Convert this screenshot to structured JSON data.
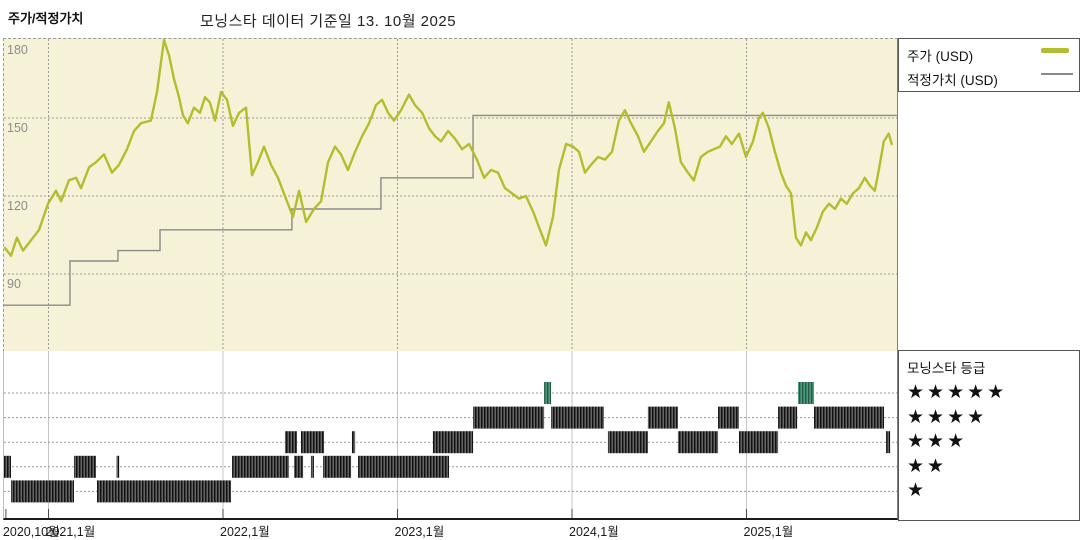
{
  "header": {
    "section_label": "주가/적정가치",
    "chart_title": "모닝스타 데이터 기준일 13. 10월 2025"
  },
  "legend": {
    "price_label": "주가 (USD)",
    "fair_value_label": "적정가치 (USD)"
  },
  "rating_legend": {
    "title": "모닝스타 등급",
    "rows": [
      "★★★★★",
      "★★★★",
      "★★★",
      "★★",
      "★"
    ]
  },
  "colors": {
    "plot_bg": "#f6f2d8",
    "price_line": "#b3bd2d",
    "fair_value_line": "#8a8a8a",
    "grid": "#9a9a9a",
    "axis_text": "#8c8c8c",
    "rating_band_dark": "#3d3d3d",
    "rating_band_green": "#3c8468"
  },
  "chart_data": {
    "type": "line",
    "title": "모닝스타 데이터 기준일 13. 10월 2025",
    "ylabel": "USD",
    "y_ticks": [
      180,
      150,
      120,
      90,
      60
    ],
    "ylim": [
      60,
      180
    ],
    "x_ticks": [
      {
        "label": "2020,10월",
        "year": 2020.756
      },
      {
        "label": "2021,1월",
        "year": 2021.0
      },
      {
        "label": "2022,1월",
        "year": 2022.0
      },
      {
        "label": "2023,1월",
        "year": 2023.0
      },
      {
        "label": "2024,1월",
        "year": 2024.0
      },
      {
        "label": "2025,1월",
        "year": 2025.0
      }
    ],
    "xlim_decimal_years": [
      2020.745,
      2025.862
    ],
    "series": [
      {
        "name": "주가 (USD)",
        "style": "line",
        "points": [
          [
            2020.751,
            100
          ],
          [
            2020.785,
            97
          ],
          [
            2020.819,
            104
          ],
          [
            2020.854,
            99
          ],
          [
            2020.9,
            103
          ],
          [
            2020.946,
            107
          ],
          [
            2020.997,
            117
          ],
          [
            2021.043,
            122
          ],
          [
            2021.072,
            118
          ],
          [
            2021.117,
            126
          ],
          [
            2021.158,
            127
          ],
          [
            2021.186,
            123
          ],
          [
            2021.232,
            131
          ],
          [
            2021.272,
            133
          ],
          [
            2021.318,
            136
          ],
          [
            2021.364,
            129
          ],
          [
            2021.404,
            132
          ],
          [
            2021.45,
            138
          ],
          [
            2021.49,
            145
          ],
          [
            2021.53,
            148
          ],
          [
            2021.587,
            149
          ],
          [
            2021.622,
            160
          ],
          [
            2021.662,
            180
          ],
          [
            2021.691,
            174
          ],
          [
            2021.719,
            165
          ],
          [
            2021.748,
            158
          ],
          [
            2021.771,
            151
          ],
          [
            2021.799,
            148
          ],
          [
            2021.834,
            154
          ],
          [
            2021.868,
            152
          ],
          [
            2021.897,
            158
          ],
          [
            2021.925,
            156
          ],
          [
            2021.954,
            149
          ],
          [
            2021.989,
            160
          ],
          [
            2022.023,
            157
          ],
          [
            2022.057,
            147
          ],
          [
            2022.092,
            152
          ],
          [
            2022.132,
            154
          ],
          [
            2022.166,
            128
          ],
          [
            2022.2,
            133
          ],
          [
            2022.235,
            139
          ],
          [
            2022.275,
            132
          ],
          [
            2022.315,
            127
          ],
          [
            2022.355,
            120
          ],
          [
            2022.401,
            112
          ],
          [
            2022.436,
            122
          ],
          [
            2022.476,
            110
          ],
          [
            2022.521,
            115
          ],
          [
            2022.562,
            118
          ],
          [
            2022.602,
            133
          ],
          [
            2022.642,
            139
          ],
          [
            2022.676,
            136
          ],
          [
            2022.716,
            130
          ],
          [
            2022.757,
            137
          ],
          [
            2022.797,
            143
          ],
          [
            2022.837,
            148
          ],
          [
            2022.877,
            155
          ],
          [
            2022.911,
            157
          ],
          [
            2022.946,
            152
          ],
          [
            2022.98,
            149
          ],
          [
            2023.02,
            153
          ],
          [
            2023.066,
            159
          ],
          [
            2023.1,
            155
          ],
          [
            2023.141,
            152
          ],
          [
            2023.181,
            146
          ],
          [
            2023.215,
            143
          ],
          [
            2023.249,
            141
          ],
          [
            2023.29,
            145
          ],
          [
            2023.33,
            142
          ],
          [
            2023.37,
            138
          ],
          [
            2023.41,
            140
          ],
          [
            2023.455,
            134
          ],
          [
            2023.496,
            127
          ],
          [
            2023.536,
            130
          ],
          [
            2023.576,
            129
          ],
          [
            2023.616,
            123
          ],
          [
            2023.656,
            121
          ],
          [
            2023.696,
            119
          ],
          [
            2023.736,
            120
          ],
          [
            2023.777,
            114
          ],
          [
            2023.811,
            108
          ],
          [
            2023.851,
            101
          ],
          [
            2023.891,
            112
          ],
          [
            2023.925,
            130
          ],
          [
            2023.966,
            140
          ],
          [
            2024.006,
            139
          ],
          [
            2024.04,
            137
          ],
          [
            2024.074,
            129
          ],
          [
            2024.109,
            132
          ],
          [
            2024.149,
            135
          ],
          [
            2024.189,
            134
          ],
          [
            2024.229,
            137
          ],
          [
            2024.269,
            149
          ],
          [
            2024.303,
            153
          ],
          [
            2024.338,
            148
          ],
          [
            2024.378,
            143
          ],
          [
            2024.412,
            137
          ],
          [
            2024.452,
            141
          ],
          [
            2024.492,
            145
          ],
          [
            2024.527,
            148
          ],
          [
            2024.555,
            156
          ],
          [
            2024.59,
            146
          ],
          [
            2024.624,
            133
          ],
          [
            2024.664,
            129
          ],
          [
            2024.698,
            126
          ],
          [
            2024.738,
            135
          ],
          [
            2024.779,
            137
          ],
          [
            2024.813,
            138
          ],
          [
            2024.848,
            139
          ],
          [
            2024.882,
            143
          ],
          [
            2024.916,
            140
          ],
          [
            2024.957,
            144
          ],
          [
            2024.997,
            135
          ],
          [
            2025.037,
            141
          ],
          [
            2025.071,
            150
          ],
          [
            2025.094,
            152
          ],
          [
            2025.129,
            146
          ],
          [
            2025.163,
            137
          ],
          [
            2025.197,
            129
          ],
          [
            2025.226,
            124
          ],
          [
            2025.255,
            121
          ],
          [
            2025.283,
            104
          ],
          [
            2025.312,
            101
          ],
          [
            2025.341,
            106
          ],
          [
            2025.369,
            103
          ],
          [
            2025.404,
            108
          ],
          [
            2025.438,
            114
          ],
          [
            2025.473,
            117
          ],
          [
            2025.507,
            115
          ],
          [
            2025.541,
            119
          ],
          [
            2025.575,
            117
          ],
          [
            2025.61,
            121
          ],
          [
            2025.644,
            123
          ],
          [
            2025.678,
            127
          ],
          [
            2025.707,
            124
          ],
          [
            2025.735,
            122
          ],
          [
            2025.758,
            130
          ],
          [
            2025.787,
            141
          ],
          [
            2025.815,
            144
          ],
          [
            2025.832,
            140
          ]
        ]
      },
      {
        "name": "적정가치 (USD)",
        "style": "step",
        "points": [
          [
            2020.745,
            78
          ],
          [
            2021.123,
            95
          ],
          [
            2021.398,
            99
          ],
          [
            2021.639,
            107
          ],
          [
            2022.395,
            115
          ],
          [
            2022.905,
            127
          ],
          [
            2023.433,
            151
          ],
          [
            2025.862,
            151
          ]
        ]
      }
    ],
    "rating_timeline": {
      "levels": [
        5,
        4,
        3,
        2,
        1
      ],
      "bands": [
        {
          "stars": 2,
          "start": 2020.745,
          "end": 2020.785
        },
        {
          "stars": 1,
          "start": 2020.785,
          "end": 2021.146
        },
        {
          "stars": 2,
          "start": 2021.146,
          "end": 2021.272
        },
        {
          "stars": 1,
          "start": 2021.278,
          "end": 2022.046
        },
        {
          "stars": 2,
          "start": 2021.39,
          "end": 2021.405
        },
        {
          "stars": 2,
          "start": 2022.052,
          "end": 2022.378
        },
        {
          "stars": 3,
          "start": 2022.355,
          "end": 2022.424
        },
        {
          "stars": 2,
          "start": 2022.407,
          "end": 2022.459
        },
        {
          "stars": 3,
          "start": 2022.447,
          "end": 2022.579
        },
        {
          "stars": 2,
          "start": 2022.504,
          "end": 2022.521
        },
        {
          "stars": 2,
          "start": 2022.573,
          "end": 2022.734
        },
        {
          "stars": 3,
          "start": 2022.739,
          "end": 2022.757
        },
        {
          "stars": 2,
          "start": 2022.774,
          "end": 2023.295
        },
        {
          "stars": 3,
          "start": 2023.203,
          "end": 2023.433
        },
        {
          "stars": 4,
          "start": 2023.433,
          "end": 2023.84
        },
        {
          "stars": 5,
          "start": 2023.84,
          "end": 2023.88
        },
        {
          "stars": 4,
          "start": 2023.88,
          "end": 2024.183
        },
        {
          "stars": 3,
          "start": 2024.206,
          "end": 2024.435
        },
        {
          "stars": 4,
          "start": 2024.435,
          "end": 2024.607
        },
        {
          "stars": 3,
          "start": 2024.607,
          "end": 2024.837
        },
        {
          "stars": 4,
          "start": 2024.837,
          "end": 2024.957
        },
        {
          "stars": 3,
          "start": 2024.957,
          "end": 2025.181
        },
        {
          "stars": 4,
          "start": 2025.181,
          "end": 2025.29
        },
        {
          "stars": 5,
          "start": 2025.295,
          "end": 2025.387
        },
        {
          "stars": 4,
          "start": 2025.387,
          "end": 2025.788
        },
        {
          "stars": 3,
          "start": 2025.8,
          "end": 2025.823
        }
      ]
    }
  }
}
